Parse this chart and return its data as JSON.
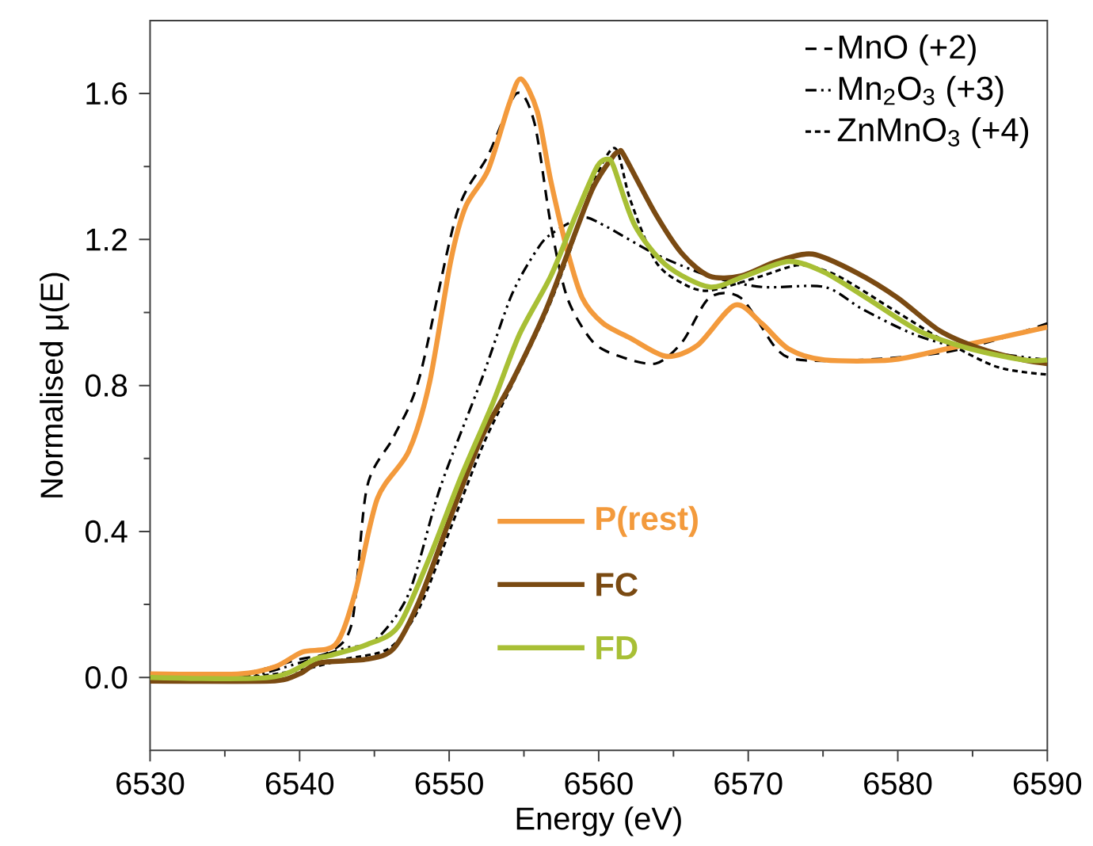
{
  "chart_data": {
    "type": "line",
    "xlabel": "Energy (eV)",
    "ylabel": "Normalised μ(E)",
    "xlim": [
      6530,
      6590
    ],
    "ylim": [
      -0.2,
      1.8
    ],
    "xticks": [
      6530,
      6540,
      6550,
      6560,
      6570,
      6580,
      6590
    ],
    "yticks": [
      {
        "value": 0,
        "label": "0.0"
      },
      0.4,
      0.8,
      1.2,
      1.6
    ],
    "legend": "top right",
    "grid": false,
    "series": [
      {
        "name": "MnO (+2)",
        "color": "#000000",
        "line_style": "dashed",
        "x": [
          6530,
          6536,
          6540,
          6542,
          6543.5,
          6544.5,
          6546.3,
          6548,
          6550.5,
          6552.6,
          6554.5,
          6555.7,
          6556.8,
          6557.9,
          6559.6,
          6561.4,
          6563.8,
          6565.6,
          6567.4,
          6569.5,
          6571.9,
          6573.5,
          6577.6,
          6583,
          6587,
          6590
        ],
        "values": [
          0.0,
          0.01,
          0.05,
          0.07,
          0.15,
          0.52,
          0.66,
          0.82,
          1.27,
          1.43,
          1.6,
          1.52,
          1.24,
          1.04,
          0.92,
          0.88,
          0.86,
          0.92,
          1.04,
          1.04,
          0.9,
          0.87,
          0.87,
          0.89,
          0.93,
          0.97
        ]
      },
      {
        "name": "Mn$_{2}$O$_{3}$ (+3)",
        "color": "#000000",
        "line_style": "dashdotdotted",
        "x": [
          6530,
          6536,
          6540,
          6543,
          6545,
          6547.3,
          6549.4,
          6552.2,
          6554.2,
          6556,
          6557,
          6558.9,
          6560.3,
          6563.8,
          6567.4,
          6570.9,
          6575.1,
          6577.6,
          6581.1,
          6584.6,
          6590
        ],
        "values": [
          0.0,
          0.0,
          0.04,
          0.08,
          0.1,
          0.23,
          0.52,
          0.82,
          1.05,
          1.18,
          1.22,
          1.26,
          1.24,
          1.16,
          1.1,
          1.07,
          1.07,
          1.01,
          0.94,
          0.9,
          0.87
        ]
      },
      {
        "name": "ZnMnO$_{3}$ (+4)",
        "color": "#000000",
        "line_style": "densely dashed",
        "x": [
          6530,
          6536,
          6540,
          6543,
          6546,
          6548,
          6550.2,
          6552.3,
          6554.3,
          6556.5,
          6558,
          6559.7,
          6561.1,
          6562.1,
          6563.8,
          6565.6,
          6567.4,
          6570.9,
          6573.5,
          6576,
          6579.6,
          6583.2,
          6586.7,
          6590
        ],
        "values": [
          0.0,
          0.0,
          0.02,
          0.05,
          0.08,
          0.19,
          0.42,
          0.64,
          0.81,
          1.0,
          1.16,
          1.36,
          1.45,
          1.31,
          1.14,
          1.08,
          1.06,
          1.1,
          1.13,
          1.1,
          1.01,
          0.92,
          0.85,
          0.83
        ]
      },
      {
        "name": "P(rest)",
        "color": "#f39a3c",
        "line_style": "solid",
        "x": [
          6530,
          6536,
          6538.4,
          6540.2,
          6542.4,
          6543.7,
          6545.2,
          6547.3,
          6548.7,
          6550.1,
          6551.1,
          6552.6,
          6554,
          6554.8,
          6555.9,
          6556.8,
          6557.9,
          6558.9,
          6560.3,
          6562.1,
          6564.5,
          6566.6,
          6569.1,
          6570.9,
          6572.7,
          6575.1,
          6579.6,
          6583.2,
          6586.7,
          6590
        ],
        "values": [
          0.01,
          0.01,
          0.03,
          0.07,
          0.09,
          0.23,
          0.49,
          0.62,
          0.81,
          1.14,
          1.29,
          1.39,
          1.57,
          1.64,
          1.55,
          1.36,
          1.17,
          1.04,
          0.97,
          0.93,
          0.88,
          0.91,
          1.02,
          0.97,
          0.9,
          0.87,
          0.87,
          0.9,
          0.93,
          0.96
        ]
      },
      {
        "name": "FC",
        "color": "#7a4a12",
        "line_style": "solid",
        "x": [
          6530,
          6538,
          6540,
          6541.3,
          6544.5,
          6546.3,
          6548,
          6550.1,
          6552.2,
          6554.2,
          6556.4,
          6557.9,
          6559.6,
          6561,
          6561.4,
          6561.7,
          6563.8,
          6565.6,
          6567.4,
          6569.5,
          6571.9,
          6574.3,
          6577.2,
          6580,
          6582.8,
          6585.6,
          6588.4,
          6590
        ],
        "values": [
          -0.01,
          -0.01,
          0.01,
          0.04,
          0.05,
          0.08,
          0.21,
          0.44,
          0.66,
          0.81,
          1.0,
          1.16,
          1.34,
          1.43,
          1.44,
          1.43,
          1.27,
          1.16,
          1.1,
          1.1,
          1.14,
          1.16,
          1.11,
          1.04,
          0.95,
          0.9,
          0.87,
          0.86
        ]
      },
      {
        "name": "FD",
        "color": "#a8bf35",
        "line_style": "solid",
        "x": [
          6530,
          6538,
          6541,
          6542,
          6544.5,
          6546.6,
          6548.7,
          6550.8,
          6552.9,
          6554.7,
          6556.8,
          6558.5,
          6559.9,
          6560.6,
          6561,
          6562.4,
          6564.5,
          6567.4,
          6569.8,
          6572.7,
          6575.1,
          6577.9,
          6581.4,
          6584.9,
          6588.4,
          6590
        ],
        "values": [
          0.0,
          0.0,
          0.05,
          0.06,
          0.09,
          0.14,
          0.33,
          0.55,
          0.75,
          0.94,
          1.1,
          1.27,
          1.4,
          1.42,
          1.4,
          1.24,
          1.13,
          1.07,
          1.1,
          1.14,
          1.11,
          1.04,
          0.95,
          0.9,
          0.87,
          0.87
        ]
      }
    ]
  }
}
